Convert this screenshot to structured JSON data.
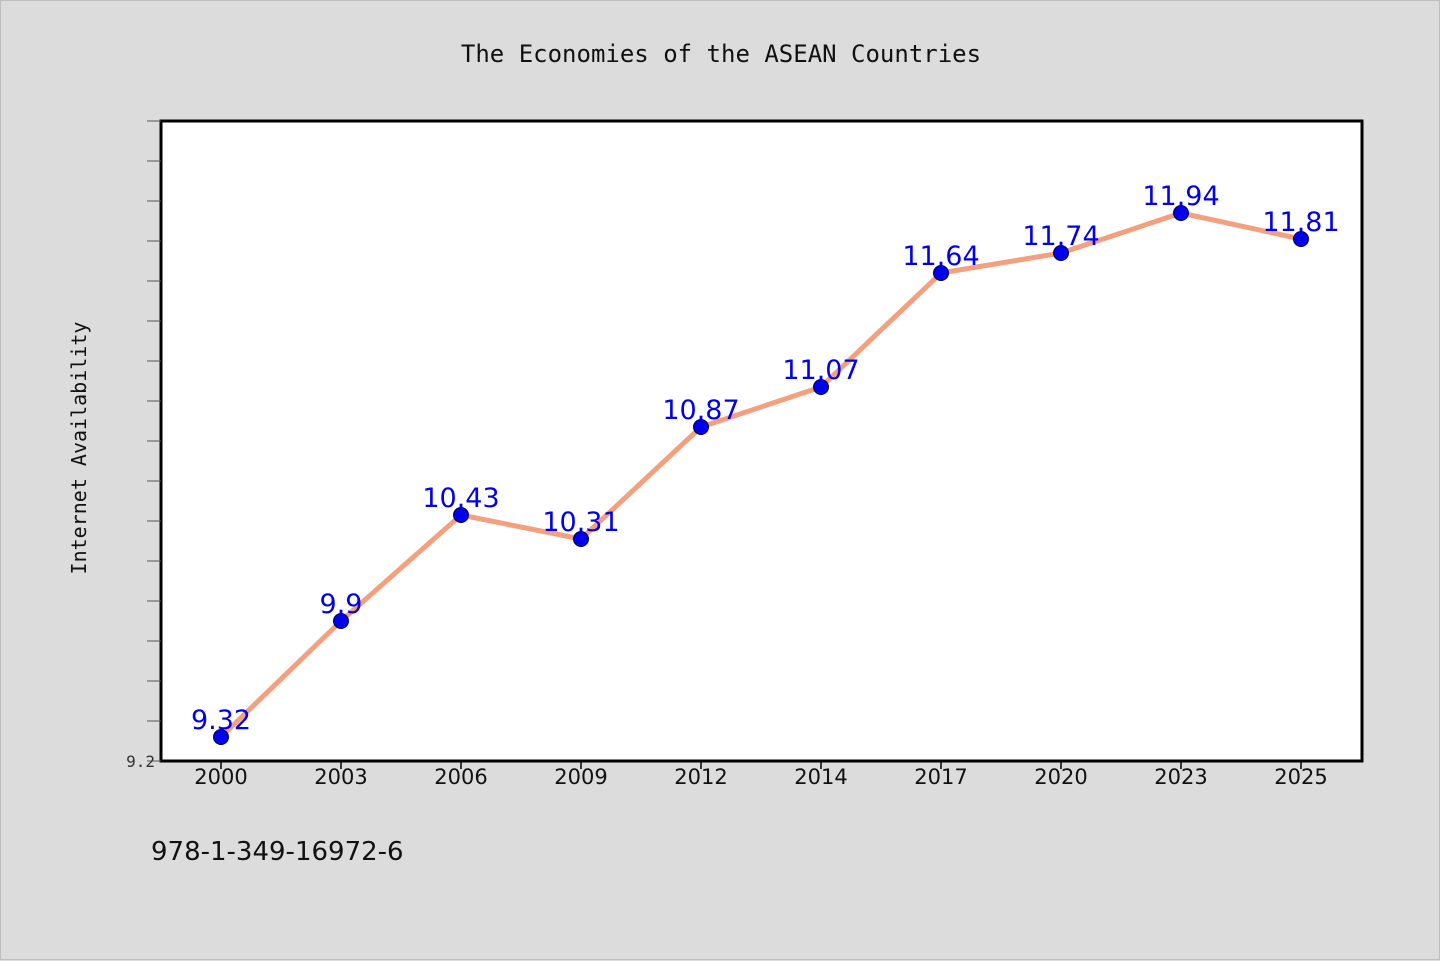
{
  "chart_data": {
    "type": "line",
    "title": "The Economies of the ASEAN Countries",
    "xlabel": "",
    "ylabel": "Internet Availability",
    "categories": [
      "2000",
      "2003",
      "2006",
      "2009",
      "2012",
      "2014",
      "2017",
      "2020",
      "2023",
      "2025"
    ],
    "series": [
      {
        "values": [
          9.32,
          9.9,
          10.43,
          10.31,
          10.87,
          11.07,
          11.64,
          11.74,
          11.94,
          11.81
        ],
        "data_labels": [
          "9.32",
          "9.9",
          "10.43",
          "10.31",
          "10.87",
          "11.07",
          "11.64",
          "11.74",
          "11.94",
          "11.81"
        ]
      }
    ],
    "ylim": [
      9.2,
      12.4
    ],
    "y_tick_labels": [
      "9.2"
    ],
    "grid": false,
    "line_color": "#f4a07e",
    "marker_color": "#0000ee",
    "label_color": "#0000ee",
    "plot_background": "#ffffff",
    "page_background": "#dcdcdc"
  },
  "footer": {
    "code": "978-1-349-16972-6"
  }
}
